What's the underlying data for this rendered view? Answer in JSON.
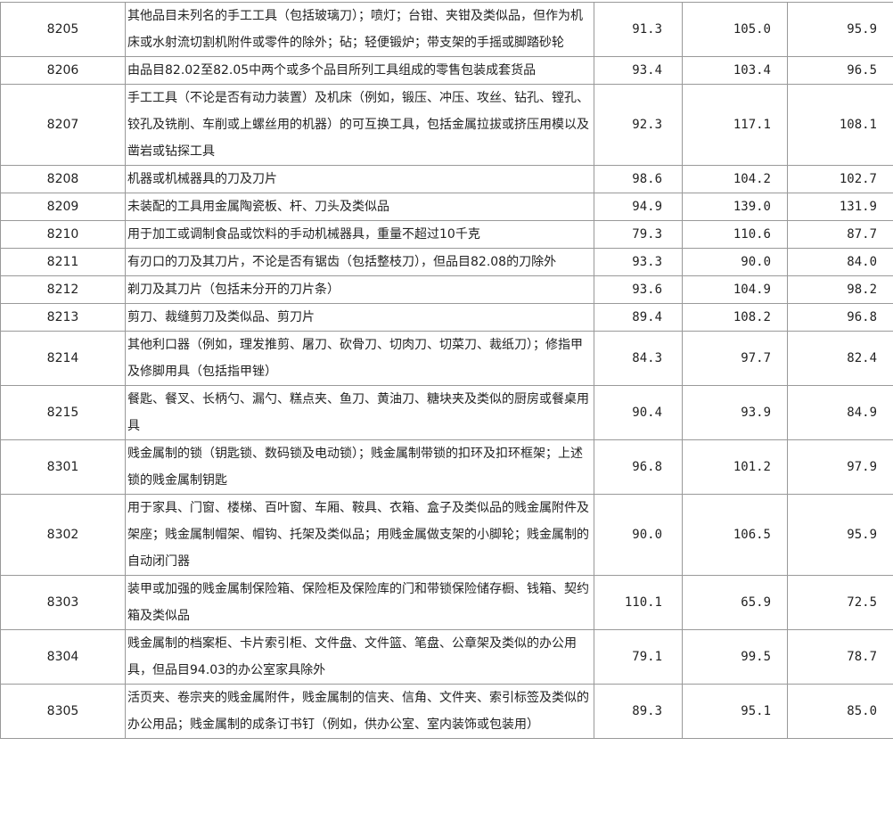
{
  "rows": [
    {
      "code": "8205",
      "desc": "其他品目未列名的手工工具（包括玻璃刀）；喷灯；台钳、夹钳及类似品，但作为机床或水射流切割机附件或零件的除外；砧；轻便锻炉；带支架的手摇或脚踏砂轮",
      "v1": "91.3",
      "v2": "105.0",
      "v3": "95.9"
    },
    {
      "code": "8206",
      "desc": "由品目82.02至82.05中两个或多个品目所列工具组成的零售包装成套货品",
      "v1": "93.4",
      "v2": "103.4",
      "v3": "96.5"
    },
    {
      "code": "8207",
      "desc": "手工工具（不论是否有动力装置）及机床（例如，锻压、冲压、攻丝、钻孔、镗孔、铰孔及铣削、车削或上螺丝用的机器）的可互换工具，包括金属拉拔或挤压用模以及凿岩或钻探工具",
      "v1": "92.3",
      "v2": "117.1",
      "v3": "108.1"
    },
    {
      "code": "8208",
      "desc": "机器或机械器具的刀及刀片",
      "v1": "98.6",
      "v2": "104.2",
      "v3": "102.7"
    },
    {
      "code": "8209",
      "desc": "未装配的工具用金属陶瓷板、杆、刀头及类似品",
      "v1": "94.9",
      "v2": "139.0",
      "v3": "131.9"
    },
    {
      "code": "8210",
      "desc": "用于加工或调制食品或饮料的手动机械器具，重量不超过10千克",
      "v1": "79.3",
      "v2": "110.6",
      "v3": "87.7"
    },
    {
      "code": "8211",
      "desc": "有刃口的刀及其刀片，不论是否有锯齿（包括整枝刀），但品目82.08的刀除外",
      "v1": "93.3",
      "v2": "90.0",
      "v3": "84.0"
    },
    {
      "code": "8212",
      "desc": "剃刀及其刀片（包括未分开的刀片条）",
      "v1": "93.6",
      "v2": "104.9",
      "v3": "98.2"
    },
    {
      "code": "8213",
      "desc": "剪刀、裁缝剪刀及类似品、剪刀片",
      "v1": "89.4",
      "v2": "108.2",
      "v3": "96.8"
    },
    {
      "code": "8214",
      "desc": "其他利口器（例如，理发推剪、屠刀、砍骨刀、切肉刀、切菜刀、裁纸刀）；修指甲及修脚用具（包括指甲锉）",
      "v1": "84.3",
      "v2": "97.7",
      "v3": "82.4"
    },
    {
      "code": "8215",
      "desc": "餐匙、餐叉、长柄勺、漏勺、糕点夹、鱼刀、黄油刀、糖块夹及类似的厨房或餐桌用具",
      "v1": "90.4",
      "v2": "93.9",
      "v3": "84.9"
    },
    {
      "code": "8301",
      "desc": "贱金属制的锁（钥匙锁、数码锁及电动锁）；贱金属制带锁的扣环及扣环框架；上述锁的贱金属制钥匙",
      "v1": "96.8",
      "v2": "101.2",
      "v3": "97.9"
    },
    {
      "code": "8302",
      "desc": "用于家具、门窗、楼梯、百叶窗、车厢、鞍具、衣箱、盒子及类似品的贱金属附件及架座；贱金属制帽架、帽钩、托架及类似品；用贱金属做支架的小脚轮；贱金属制的自动闭门器",
      "v1": "90.0",
      "v2": "106.5",
      "v3": "95.9"
    },
    {
      "code": "8303",
      "desc": "装甲或加强的贱金属制保险箱、保险柜及保险库的门和带锁保险储存橱、钱箱、契约箱及类似品",
      "v1": "110.1",
      "v2": "65.9",
      "v3": "72.5"
    },
    {
      "code": "8304",
      "desc": "贱金属制的档案柜、卡片索引柜、文件盘、文件篮、笔盘、公章架及类似的办公用具，但品目94.03的办公室家具除外",
      "v1": "79.1",
      "v2": "99.5",
      "v3": "78.7"
    },
    {
      "code": "8305",
      "desc": "活页夹、卷宗夹的贱金属附件，贱金属制的信夹、信角、文件夹、索引标签及类似的办公用品；贱金属制的成条订书钉（例如，供办公室、室内装饰或包装用）",
      "v1": "89.3",
      "v2": "95.1",
      "v3": "85.0"
    }
  ]
}
